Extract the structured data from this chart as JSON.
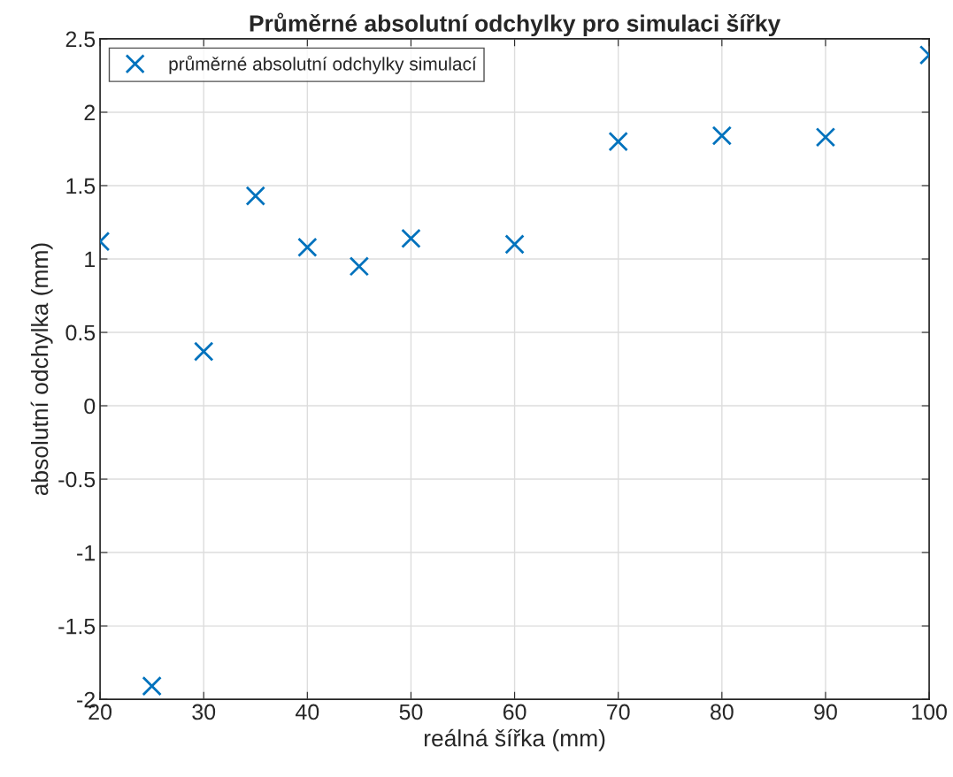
{
  "chart_data": {
    "type": "scatter",
    "title": "Průměrné absolutní odchylky pro simulaci šířky",
    "xlabel": "reálná šířka (mm)",
    "ylabel": "absolutní odchylka (mm)",
    "x": [
      20,
      25,
      30,
      35,
      40,
      45,
      50,
      60,
      70,
      80,
      90,
      100
    ],
    "series": [
      {
        "name": "průměrné absolutní odchylky simulací",
        "color": "#0072bd",
        "values": [
          1.12,
          -1.91,
          0.37,
          1.43,
          1.08,
          0.95,
          1.14,
          1.1,
          1.8,
          1.84,
          1.83,
          2.39
        ]
      }
    ],
    "xlim": [
      20,
      100
    ],
    "xticks": [
      20,
      30,
      40,
      50,
      60,
      70,
      80,
      90,
      100
    ],
    "ylim": [
      -2,
      2.5
    ],
    "yticks": [
      -2,
      -1.5,
      -1,
      -0.5,
      0,
      0.5,
      1,
      1.5,
      2,
      2.5
    ],
    "grid": true,
    "legend": "top left",
    "marker": "cross"
  }
}
